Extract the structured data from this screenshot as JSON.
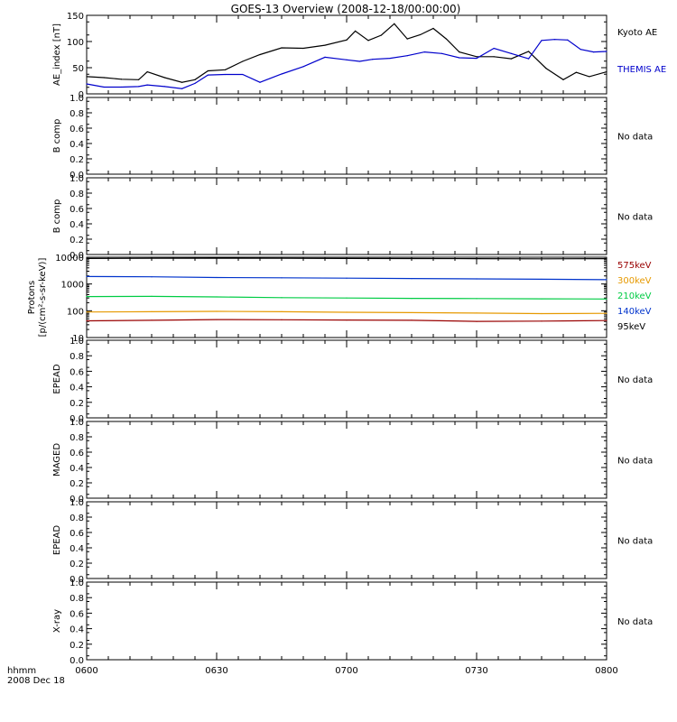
{
  "title": "GOES-13 Overview (2008-12-18/00:00:00)",
  "time_axis": {
    "ticks": [
      "0600",
      "0630",
      "0700",
      "0730",
      "0800"
    ],
    "label_line1": "hhmm",
    "label_line2": "2008 Dec 18"
  },
  "no_data_text": "No data",
  "colors": {
    "kyoto": "#000000",
    "themis": "#0000cc",
    "kev575": "#990000",
    "kev300": "#e69900",
    "kev210": "#00cc44",
    "kev140": "#0033cc",
    "kev95": "#000000"
  },
  "chart_data": [
    {
      "panel": "ae",
      "type": "line",
      "ylabel": "AE_index [nT]",
      "ylim": [
        0,
        150
      ],
      "yticks": [
        "0",
        "50",
        "100",
        "150"
      ],
      "x_unit": "hhmm",
      "series": [
        {
          "name": "Kyoto AE",
          "color_key": "kyoto",
          "x": [
            "0600",
            "0604",
            "0608",
            "0612",
            "0614",
            "0618",
            "0622",
            "0625",
            "0628",
            "0632",
            "0636",
            "0640",
            "0645",
            "0650",
            "0655",
            "0700",
            "0702",
            "0705",
            "0708",
            "0711",
            "0714",
            "0717",
            "0720",
            "0723",
            "0726",
            "0730",
            "0734",
            "0738",
            "0742",
            "0746",
            "0750",
            "0753",
            "0756",
            "0800"
          ],
          "values": [
            33,
            31,
            28,
            27,
            42,
            31,
            22,
            27,
            44,
            46,
            62,
            75,
            88,
            87,
            93,
            103,
            120,
            102,
            112,
            134,
            105,
            113,
            125,
            105,
            80,
            71,
            71,
            67,
            81,
            49,
            27,
            41,
            33,
            42
          ]
        },
        {
          "name": "THEMIS AE",
          "color_key": "themis",
          "x": [
            "0600",
            "0604",
            "0608",
            "0612",
            "0614",
            "0618",
            "0622",
            "0625",
            "0628",
            "0632",
            "0636",
            "0640",
            "0645",
            "0650",
            "0655",
            "0700",
            "0703",
            "0706",
            "0710",
            "0714",
            "0718",
            "0722",
            "0726",
            "0730",
            "0734",
            "0738",
            "0742",
            "0745",
            "0748",
            "0751",
            "0754",
            "0757",
            "0800"
          ],
          "values": [
            19,
            13,
            13,
            14,
            17,
            14,
            10,
            20,
            36,
            37,
            37,
            22,
            38,
            52,
            70,
            65,
            62,
            66,
            68,
            73,
            80,
            77,
            69,
            68,
            87,
            77,
            67,
            102,
            104,
            103,
            85,
            80,
            81
          ]
        }
      ]
    },
    {
      "panel": "bcomp1",
      "type": "line",
      "ylabel": "B comp",
      "ylim": [
        0,
        1
      ],
      "yticks": [
        "0.0",
        "0.2",
        "0.4",
        "0.6",
        "0.8",
        "1.0"
      ],
      "series": []
    },
    {
      "panel": "bcomp2",
      "type": "line",
      "ylabel": "B comp",
      "ylim": [
        0,
        1
      ],
      "yticks": [
        "0.0",
        "0.2",
        "0.4",
        "0.6",
        "0.8",
        "1.0"
      ],
      "series": []
    },
    {
      "panel": "protons",
      "type": "line",
      "ylabel_line1": "Protons",
      "ylabel_line2": "[p/(cm²-s-sr-keV)]",
      "yscale": "log",
      "ylim": [
        10,
        10000
      ],
      "yticks": [
        "10",
        "100",
        "1000",
        "10000"
      ],
      "series": [
        {
          "name": "575keV",
          "color_key": "kev575",
          "x": [
            "0600",
            "0615",
            "0630",
            "0645",
            "0700",
            "0715",
            "0730",
            "0745",
            "0800"
          ],
          "values": [
            42,
            44,
            47,
            46,
            45,
            44,
            40,
            41,
            43
          ]
        },
        {
          "name": "300keV",
          "color_key": "kev300",
          "x": [
            "0600",
            "0615",
            "0630",
            "0645",
            "0700",
            "0715",
            "0730",
            "0745",
            "0800"
          ],
          "values": [
            90,
            92,
            95,
            92,
            88,
            85,
            82,
            78,
            80
          ]
        },
        {
          "name": "210keV",
          "color_key": "kev210",
          "x": [
            "0600",
            "0615",
            "0630",
            "0645",
            "0700",
            "0715",
            "0730",
            "0745",
            "0800"
          ],
          "values": [
            340,
            345,
            330,
            310,
            300,
            290,
            285,
            280,
            275
          ]
        },
        {
          "name": "140keV",
          "color_key": "kev140",
          "x": [
            "0600",
            "0615",
            "0630",
            "0645",
            "0700",
            "0715",
            "0730",
            "0745",
            "0800"
          ],
          "values": [
            1900,
            1850,
            1750,
            1700,
            1650,
            1600,
            1550,
            1500,
            1450
          ]
        },
        {
          "name": "95keV",
          "color_key": "kev95",
          "x": [
            "0600",
            "0615",
            "0630",
            "0645",
            "0700",
            "0715",
            "0730",
            "0745",
            "0800"
          ],
          "values": [
            9000,
            9100,
            9200,
            9100,
            9000,
            8900,
            8800,
            8700,
            8800
          ]
        }
      ]
    },
    {
      "panel": "epead1",
      "type": "line",
      "ylabel": "EPEAD",
      "ylim": [
        0,
        1
      ],
      "yticks": [
        "0.0",
        "0.2",
        "0.4",
        "0.6",
        "0.8",
        "1.0"
      ],
      "series": []
    },
    {
      "panel": "maged",
      "type": "line",
      "ylabel": "MAGED",
      "ylim": [
        0,
        1
      ],
      "yticks": [
        "0.0",
        "0.2",
        "0.4",
        "0.6",
        "0.8",
        "1.0"
      ],
      "series": []
    },
    {
      "panel": "epead2",
      "type": "line",
      "ylabel": "EPEAD",
      "ylim": [
        0,
        1
      ],
      "yticks": [
        "0.0",
        "0.2",
        "0.4",
        "0.6",
        "0.8",
        "1.0"
      ],
      "series": []
    },
    {
      "panel": "xray",
      "type": "line",
      "ylabel": "X-ray",
      "ylim": [
        0,
        1
      ],
      "yticks": [
        "0.0",
        "0.2",
        "0.4",
        "0.6",
        "0.8",
        "1.0"
      ],
      "series": []
    }
  ]
}
